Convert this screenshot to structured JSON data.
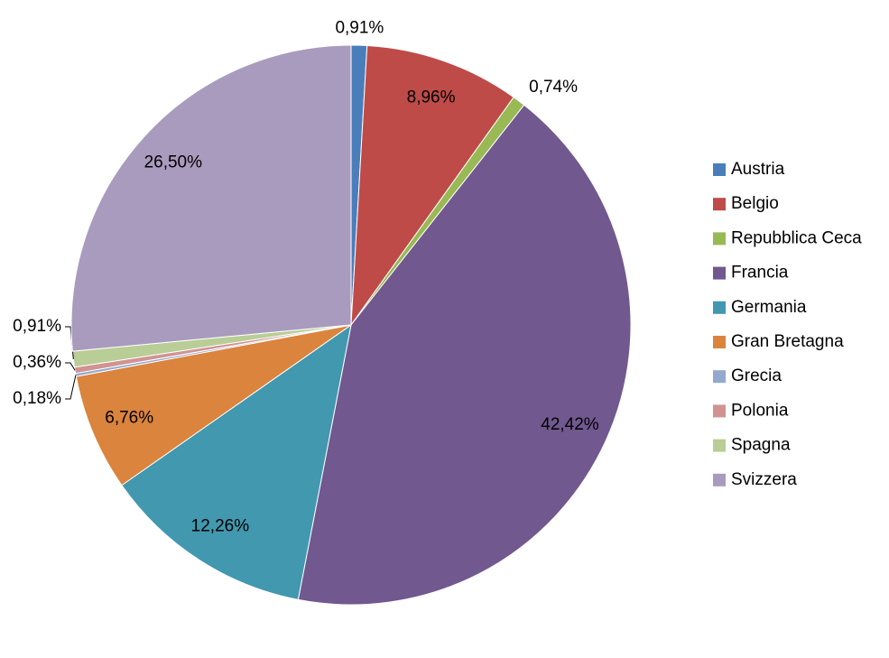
{
  "chart_data": {
    "type": "pie",
    "categories": [
      "Austria",
      "Belgio",
      "Repubblica Ceca",
      "Francia",
      "Germania",
      "Gran Bretagna",
      "Grecia",
      "Polonia",
      "Spagna",
      "Svizzera"
    ],
    "values": [
      0.91,
      8.96,
      0.74,
      42.42,
      12.26,
      6.76,
      0.18,
      0.36,
      0.91,
      26.5
    ],
    "value_labels": [
      "0,91%",
      "8,96%",
      "0,74%",
      "42,42%",
      "12,26%",
      "6,76%",
      "0,18%",
      "0,36%",
      "0,91%",
      "26,50%"
    ],
    "colors": [
      "#4a7ebb",
      "#be4b48",
      "#98b954",
      "#71588f",
      "#4198af",
      "#db843d",
      "#93a9cf",
      "#d19392",
      "#b9cd96",
      "#a99bbd"
    ],
    "legend": "right"
  }
}
